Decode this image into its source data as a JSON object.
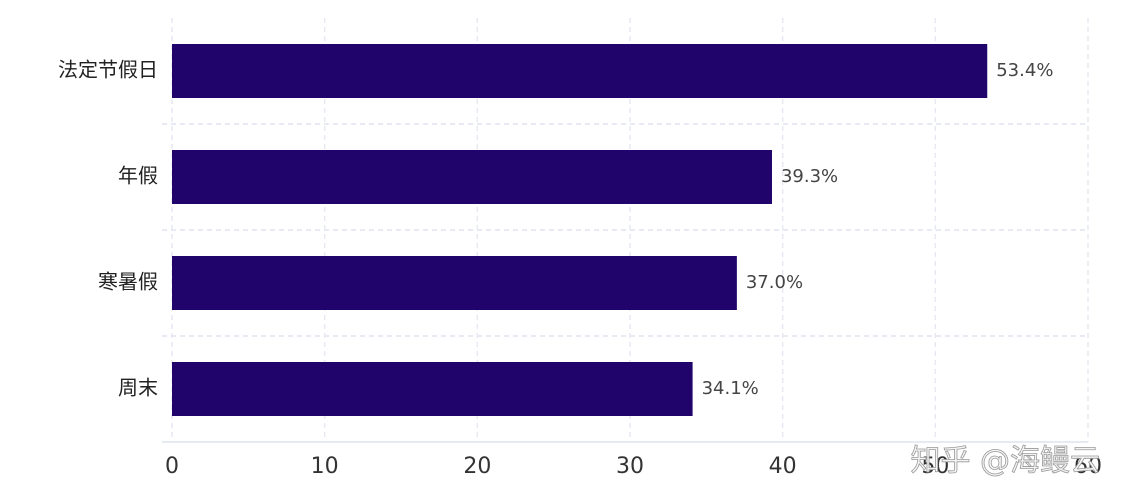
{
  "chart_data": {
    "type": "bar",
    "orientation": "horizontal",
    "categories": [
      "法定节假日",
      "年假",
      "寒暑假",
      "周末"
    ],
    "values": [
      53.4,
      39.3,
      37.0,
      34.1
    ],
    "value_labels": [
      "53.4%",
      "39.3%",
      "37.0%",
      "34.1%"
    ],
    "color": "#20036b",
    "xlim": [
      0,
      60
    ],
    "xticks": [
      0,
      10,
      20,
      30,
      40,
      50,
      60
    ],
    "grid": true,
    "watermark": "知乎 @海鳗云"
  }
}
